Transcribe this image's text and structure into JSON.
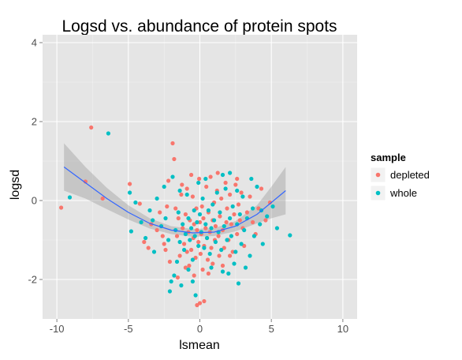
{
  "chart_data": {
    "type": "scatter",
    "title": "Logsd vs. abundance of protein spots",
    "xlabel": "lsmean",
    "ylabel": "logsd",
    "xlim": [
      -11,
      11
    ],
    "ylim": [
      -3,
      4.2
    ],
    "xticks": [
      -10,
      -5,
      0,
      5,
      10
    ],
    "yticks": [
      -2,
      0,
      2,
      4
    ],
    "grid": true,
    "background": "#e5e5e5",
    "legend": {
      "title": "sample",
      "position": "right",
      "entries": [
        {
          "label": "depleted",
          "color": "#f8766d"
        },
        {
          "label": "whole",
          "color": "#00bfc4"
        }
      ]
    },
    "smooth": {
      "color": "#3366ff",
      "ribbon_color": "#999999",
      "x": [
        -9.5,
        -8,
        -6.5,
        -5,
        -3.5,
        -2,
        -0.5,
        1,
        2.5,
        4,
        5,
        6
      ],
      "y": [
        0.85,
        0.45,
        0.05,
        -0.3,
        -0.58,
        -0.75,
        -0.82,
        -0.8,
        -0.65,
        -0.35,
        -0.05,
        0.25
      ],
      "upper": [
        1.45,
        0.85,
        0.32,
        -0.12,
        -0.45,
        -0.65,
        -0.72,
        -0.7,
        -0.52,
        -0.12,
        0.35,
        0.85
      ],
      "lower": [
        0.25,
        0.05,
        -0.22,
        -0.48,
        -0.71,
        -0.85,
        -0.92,
        -0.9,
        -0.78,
        -0.58,
        -0.45,
        -0.35
      ]
    },
    "series": [
      {
        "name": "depleted",
        "color": "#f8766d",
        "points": [
          [
            -9.7,
            -0.18
          ],
          [
            -7.6,
            1.85
          ],
          [
            -8,
            0.48
          ],
          [
            -6.8,
            0.05
          ],
          [
            -4.9,
            0.42
          ],
          [
            -4.2,
            -0.08
          ],
          [
            -3.6,
            -1.2
          ],
          [
            -3.4,
            -0.6
          ],
          [
            -3,
            -0.75
          ],
          [
            -2.8,
            -0.3
          ],
          [
            -2.5,
            -1.1
          ],
          [
            -2.2,
            0.5
          ],
          [
            -2.1,
            -1.55
          ],
          [
            -1.9,
            1.45
          ],
          [
            -1.8,
            1.05
          ],
          [
            -1.7,
            -0.2
          ],
          [
            -1.6,
            -0.9
          ],
          [
            -1.5,
            -0.45
          ],
          [
            -1.4,
            -1.4
          ],
          [
            -1.3,
            0.15
          ],
          [
            -1.2,
            -0.7
          ],
          [
            -1.1,
            -1.1
          ],
          [
            -1,
            -0.35
          ],
          [
            -0.9,
            0.3
          ],
          [
            -0.8,
            -0.8
          ],
          [
            -0.75,
            -1.65
          ],
          [
            -0.7,
            -0.5
          ],
          [
            -0.6,
            -1.25
          ],
          [
            -0.5,
            0.1
          ],
          [
            -0.45,
            -0.95
          ],
          [
            -0.4,
            -0.6
          ],
          [
            -0.3,
            -1.45
          ],
          [
            -0.25,
            -0.2
          ],
          [
            -0.2,
            -0.75
          ],
          [
            -0.1,
            -1.05
          ],
          [
            -0.05,
            0.55
          ],
          [
            0,
            -0.55
          ],
          [
            0.05,
            -1.35
          ],
          [
            0.1,
            -0.85
          ],
          [
            0.15,
            -0.15
          ],
          [
            0.2,
            -1.75
          ],
          [
            0.25,
            -0.45
          ],
          [
            0.3,
            -1.15
          ],
          [
            0.4,
            -0.7
          ],
          [
            0.45,
            0.35
          ],
          [
            0.5,
            -0.95
          ],
          [
            0.55,
            -1.5
          ],
          [
            0.6,
            -0.3
          ],
          [
            0.7,
            -0.8
          ],
          [
            0.75,
            0.6
          ],
          [
            0.8,
            -1.2
          ],
          [
            0.9,
            -0.5
          ],
          [
            1,
            -0.05
          ],
          [
            1.05,
            -1.0
          ],
          [
            1.1,
            -0.65
          ],
          [
            1.2,
            0.25
          ],
          [
            1.3,
            -0.9
          ],
          [
            1.35,
            -1.4
          ],
          [
            1.4,
            -0.4
          ],
          [
            1.5,
            0.05
          ],
          [
            1.6,
            -0.75
          ],
          [
            1.7,
            -1.2
          ],
          [
            1.8,
            0.45
          ],
          [
            1.85,
            -0.55
          ],
          [
            1.9,
            -0.2
          ],
          [
            2,
            -1.0
          ],
          [
            2.1,
            0.15
          ],
          [
            2.2,
            -0.6
          ],
          [
            2.3,
            -1.3
          ],
          [
            2.4,
            -0.35
          ],
          [
            2.5,
            0.4
          ],
          [
            2.6,
            -0.85
          ],
          [
            2.7,
            -0.1
          ],
          [
            2.8,
            -0.5
          ],
          [
            2.9,
            0.2
          ],
          [
            3,
            -0.7
          ],
          [
            3.1,
            -1.15
          ],
          [
            3.3,
            -0.3
          ],
          [
            3.5,
            0.1
          ],
          [
            3.7,
            -0.55
          ],
          [
            3.9,
            -0.85
          ],
          [
            4.1,
            -0.2
          ],
          [
            4.3,
            0.3
          ],
          [
            4.6,
            -0.5
          ],
          [
            4.9,
            -0.05
          ],
          [
            -0.2,
            -2.65
          ],
          [
            0,
            -2.6
          ],
          [
            0.3,
            -2.55
          ],
          [
            -0.4,
            -1.9
          ],
          [
            0.6,
            -1.85
          ],
          [
            -1.0,
            -1.7
          ],
          [
            1.6,
            -1.65
          ],
          [
            -2.6,
            -0.9
          ],
          [
            -3.9,
            -1.05
          ],
          [
            -2.3,
            -0.15
          ],
          [
            -1.55,
            -1.95
          ],
          [
            -0.9,
            -1.3
          ],
          [
            0.9,
            -1.6
          ],
          [
            2.1,
            -1.4
          ],
          [
            2.6,
            0.55
          ],
          [
            1.25,
            0.7
          ],
          [
            -0.6,
            0.65
          ],
          [
            -2.4,
            -1.25
          ],
          [
            -1.25,
            0.4
          ]
        ]
      },
      {
        "name": "whole",
        "color": "#00bfc4",
        "points": [
          [
            -9.1,
            0.08
          ],
          [
            -6.4,
            1.7
          ],
          [
            -4.8,
            -0.78
          ],
          [
            -4.9,
            0.2
          ],
          [
            -4.5,
            -0.05
          ],
          [
            -4.1,
            -0.55
          ],
          [
            -3.8,
            -0.95
          ],
          [
            -3.5,
            -0.25
          ],
          [
            -3.2,
            -1.3
          ],
          [
            -3,
            0.05
          ],
          [
            -2.7,
            -0.65
          ],
          [
            -2.4,
            -0.45
          ],
          [
            -2.2,
            -1.0
          ],
          [
            -2,
            -2.05
          ],
          [
            -2.1,
            -2.3
          ],
          [
            -1.8,
            -1.9
          ],
          [
            -1.7,
            -0.75
          ],
          [
            -1.6,
            -1.55
          ],
          [
            -1.5,
            -0.3
          ],
          [
            -1.4,
            -1.05
          ],
          [
            -1.3,
            -2.15
          ],
          [
            -1.2,
            -0.6
          ],
          [
            -1.1,
            -1.25
          ],
          [
            -1,
            -0.85
          ],
          [
            -0.9,
            0.15
          ],
          [
            -0.8,
            -0.45
          ],
          [
            -0.7,
            -1.0
          ],
          [
            -0.6,
            -0.7
          ],
          [
            -0.5,
            -1.5
          ],
          [
            -0.4,
            -0.25
          ],
          [
            -0.35,
            -0.9
          ],
          [
            -0.3,
            -2.4
          ],
          [
            -0.2,
            -0.55
          ],
          [
            -0.1,
            -1.15
          ],
          [
            0,
            -0.35
          ],
          [
            0.1,
            -0.8
          ],
          [
            0.2,
            0.05
          ],
          [
            0.3,
            -1.2
          ],
          [
            0.4,
            -0.6
          ],
          [
            0.5,
            -0.95
          ],
          [
            0.6,
            -0.25
          ],
          [
            0.7,
            -1.35
          ],
          [
            0.8,
            -0.7
          ],
          [
            0.9,
            -0.1
          ],
          [
            1,
            -0.5
          ],
          [
            1.1,
            -1.05
          ],
          [
            1.2,
            0.2
          ],
          [
            1.3,
            -0.8
          ],
          [
            1.4,
            -0.3
          ],
          [
            1.5,
            -1.25
          ],
          [
            1.6,
            -1.8
          ],
          [
            1.7,
            -0.65
          ],
          [
            1.8,
            0.3
          ],
          [
            1.9,
            -1.0
          ],
          [
            2,
            -1.85
          ],
          [
            2.1,
            -0.45
          ],
          [
            2.2,
            -0.9
          ],
          [
            2.3,
            -0.15
          ],
          [
            2.4,
            -1.6
          ],
          [
            2.5,
            -1.3
          ],
          [
            2.6,
            -0.6
          ],
          [
            2.7,
            -2.1
          ],
          [
            2.8,
            -0.35
          ],
          [
            2.9,
            -1.1
          ],
          [
            3,
            0.1
          ],
          [
            3.1,
            -0.75
          ],
          [
            3.3,
            -0.45
          ],
          [
            3.5,
            -1.4
          ],
          [
            3.7,
            -0.2
          ],
          [
            3.8,
            -0.9
          ],
          [
            4,
            0.35
          ],
          [
            4.2,
            -0.6
          ],
          [
            4.4,
            -1.1
          ],
          [
            4.7,
            -0.4
          ],
          [
            5.1,
            -0.15
          ],
          [
            5.4,
            -0.7
          ],
          [
            6.3,
            -0.88
          ],
          [
            3.6,
            0.55
          ],
          [
            2.1,
            0.7
          ],
          [
            -0.1,
            0.45
          ],
          [
            -2.5,
            0.35
          ],
          [
            -1.9,
            0.6
          ],
          [
            -0.5,
            -2.05
          ],
          [
            0.8,
            -1.7
          ],
          [
            1.6,
            0.65
          ],
          [
            3.2,
            -1.7
          ],
          [
            -3.3,
            -0.5
          ],
          [
            -1.4,
            0.25
          ],
          [
            0.4,
            0.55
          ],
          [
            2.6,
            0.25
          ],
          [
            4.3,
            -0.25
          ],
          [
            -0.8,
            -1.75
          ]
        ]
      }
    ]
  }
}
